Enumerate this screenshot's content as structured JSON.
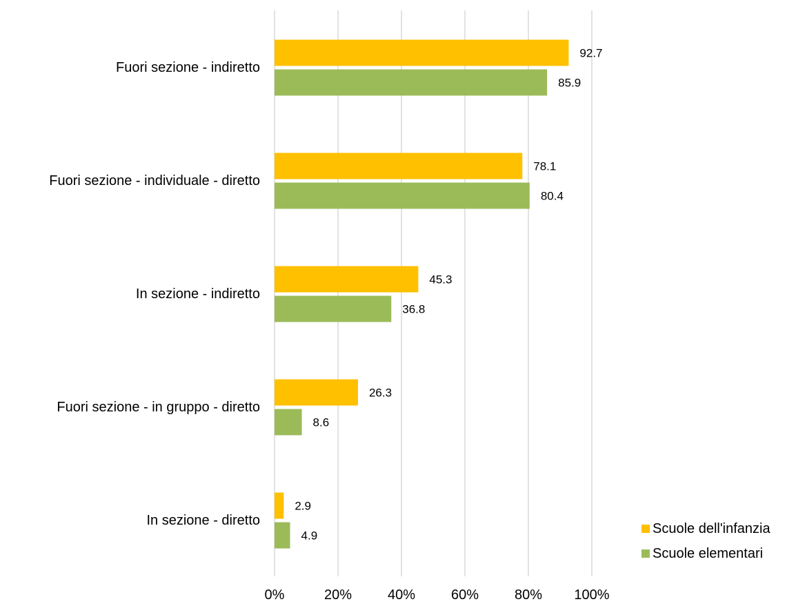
{
  "chart_data": {
    "type": "bar",
    "orientation": "horizontal",
    "title": "",
    "xlabel": "",
    "ylabel": "",
    "categories": [
      "Fuori sezione - indiretto",
      "Fuori sezione - individuale - diretto",
      "In sezione - indiretto",
      "Fuori sezione - in gruppo - diretto",
      "In sezione - diretto"
    ],
    "series": [
      {
        "name": "Scuole dell'infanzia",
        "color": "#FFC000",
        "values": [
          92.7,
          78.1,
          45.3,
          26.3,
          2.9
        ]
      },
      {
        "name": "Scuole elementari",
        "color": "#9BBB59",
        "values": [
          85.9,
          80.4,
          36.8,
          8.6,
          4.9
        ]
      }
    ],
    "xlim": [
      0,
      100
    ],
    "xticks": [
      "0%",
      "20%",
      "40%",
      "60%",
      "80%",
      "100%"
    ],
    "grid": true,
    "legend_position": "bottom-right"
  }
}
